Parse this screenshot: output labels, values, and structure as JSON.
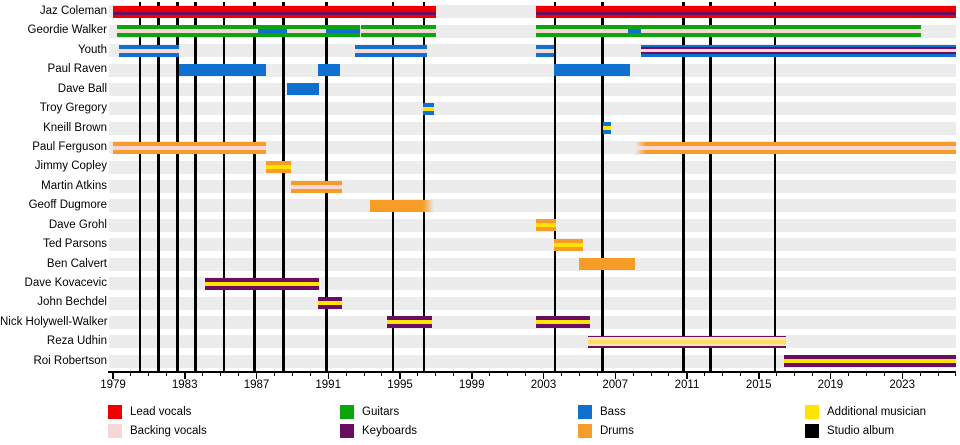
{
  "chart_data": {
    "type": "timeline",
    "description": "Band members timeline (Gantt-style) with studio album markers",
    "x_axis": {
      "start": 1979,
      "end": 2026,
      "major_tick_interval": 4,
      "minor_tick_interval": 1,
      "tick_labels": [
        "1979",
        "1983",
        "1987",
        "1991",
        "1995",
        "1999",
        "2003",
        "2007",
        "2011",
        "2015",
        "2019",
        "2023"
      ]
    },
    "role_colors": {
      "lead_vocals": "#ee0000",
      "backing_vocals": "#f6d7d7",
      "guitars": "#0ca50c",
      "keyboards": "#6b0e62",
      "bass": "#1070d0",
      "drums": "#f89c28",
      "additional_musician": "#ffe400",
      "additional_musician_pale": "#ffe9a8",
      "additional_musician_pale_core": "#ffdd66",
      "studio_album": "#000000"
    },
    "band_color": "#ececec",
    "album_years": [
      1980.5,
      1981.55,
      1982.6,
      1983.6,
      1985.2,
      1986.9,
      1988.5,
      1990.9,
      1994.6,
      1996.35,
      2003.65,
      2006.3,
      2010.8,
      2012.3,
      2015.9
    ],
    "members": [
      {
        "name": "Jaz Coleman",
        "segments": [
          {
            "from": 1979.0,
            "to": 1997.0,
            "roles": [
              "lead_vocals",
              "keyboards"
            ],
            "stripe_pos": "low"
          },
          {
            "from": 2002.6,
            "to": 2026.0,
            "roles": [
              "lead_vocals",
              "keyboards"
            ],
            "stripe_pos": "low"
          }
        ]
      },
      {
        "name": "Geordie Walker",
        "segments": [
          {
            "from": 1979.2,
            "to": 1987.1,
            "roles": [
              "guitars",
              "backing_vocals"
            ]
          },
          {
            "from": 1987.1,
            "to": 1988.7,
            "roles": [
              "guitars",
              "bass"
            ]
          },
          {
            "from": 1988.7,
            "to": 1990.9,
            "roles": [
              "guitars",
              "backing_vocals"
            ]
          },
          {
            "from": 1990.9,
            "to": 1992.8,
            "roles": [
              "guitars",
              "bass"
            ]
          },
          {
            "from": 1992.8,
            "to": 1997.0,
            "roles": [
              "guitars",
              "backing_vocals"
            ]
          },
          {
            "from": 2002.6,
            "to": 2007.7,
            "roles": [
              "guitars",
              "backing_vocals"
            ]
          },
          {
            "from": 2007.7,
            "to": 2008.45,
            "roles": [
              "guitars",
              "bass"
            ]
          },
          {
            "from": 2008.45,
            "to": 2024.05,
            "roles": [
              "guitars",
              "backing_vocals"
            ]
          }
        ]
      },
      {
        "name": "Youth",
        "segments": [
          {
            "from": 1979.35,
            "to": 1982.7,
            "roles": [
              "bass",
              "backing_vocals"
            ]
          },
          {
            "from": 1992.5,
            "to": 1996.5,
            "roles": [
              "bass",
              "backing_vocals"
            ]
          },
          {
            "from": 2002.6,
            "to": 2003.6,
            "roles": [
              "bass",
              "backing_vocals"
            ]
          },
          {
            "from": 2008.45,
            "to": 2026.0,
            "roles": [
              "bass",
              "keyboards",
              "backing_vocals"
            ]
          }
        ]
      },
      {
        "name": "Paul Raven",
        "segments": [
          {
            "from": 1982.7,
            "to": 1987.55,
            "roles": [
              "bass"
            ]
          },
          {
            "from": 1990.4,
            "to": 1991.65,
            "roles": [
              "bass"
            ]
          },
          {
            "from": 2003.6,
            "to": 2007.85,
            "roles": [
              "bass"
            ]
          }
        ]
      },
      {
        "name": "Dave Ball",
        "segments": [
          {
            "from": 1988.7,
            "to": 1990.5,
            "roles": [
              "bass"
            ]
          }
        ]
      },
      {
        "name": "Troy Gregory",
        "segments": [
          {
            "from": 1996.3,
            "to": 1996.9,
            "roles": [
              "bass",
              "additional_musician"
            ]
          }
        ]
      },
      {
        "name": "Kneill Brown",
        "segments": [
          {
            "from": 2006.3,
            "to": 2006.75,
            "roles": [
              "bass",
              "additional_musician"
            ]
          }
        ]
      },
      {
        "name": "Paul Ferguson",
        "segments": [
          {
            "from": 1979.0,
            "to": 1987.55,
            "roles": [
              "drums",
              "backing_vocals"
            ]
          },
          {
            "from": 2008.1,
            "to": 2026.0,
            "roles": [
              "drums",
              "backing_vocals"
            ],
            "fade_in": true
          }
        ]
      },
      {
        "name": "Jimmy Copley",
        "segments": [
          {
            "from": 1987.5,
            "to": 1988.9,
            "roles": [
              "drums",
              "additional_musician"
            ]
          }
        ]
      },
      {
        "name": "Martin Atkins",
        "segments": [
          {
            "from": 1988.9,
            "to": 1991.75,
            "roles": [
              "drums",
              "backing_vocals"
            ]
          }
        ]
      },
      {
        "name": "Geoff Dugmore",
        "segments": [
          {
            "from": 1993.3,
            "to": 1996.9,
            "roles": [
              "drums"
            ],
            "fade_out": true
          }
        ]
      },
      {
        "name": "Dave Grohl",
        "segments": [
          {
            "from": 2002.6,
            "to": 2003.7,
            "roles": [
              "drums",
              "additional_musician"
            ]
          }
        ]
      },
      {
        "name": "Ted Parsons",
        "segments": [
          {
            "from": 2003.6,
            "to": 2005.2,
            "roles": [
              "drums",
              "additional_musician"
            ]
          }
        ]
      },
      {
        "name": "Ben Calvert",
        "segments": [
          {
            "from": 2005.0,
            "to": 2008.1,
            "roles": [
              "drums"
            ]
          }
        ]
      },
      {
        "name": "Dave Kovacevic",
        "segments": [
          {
            "from": 1984.1,
            "to": 1990.5,
            "roles": [
              "keyboards",
              "additional_musician"
            ]
          }
        ]
      },
      {
        "name": "John Bechdel",
        "segments": [
          {
            "from": 1990.4,
            "to": 1991.75,
            "roles": [
              "keyboards",
              "additional_musician"
            ]
          }
        ]
      },
      {
        "name": "Nick Holywell-Walker",
        "segments": [
          {
            "from": 1994.3,
            "to": 1996.8,
            "roles": [
              "keyboards",
              "additional_musician"
            ]
          },
          {
            "from": 2002.6,
            "to": 2005.6,
            "roles": [
              "keyboards",
              "additional_musician"
            ]
          }
        ]
      },
      {
        "name": "Reza Udhin",
        "segments": [
          {
            "from": 2005.5,
            "to": 2016.5,
            "roles": [
              "keyboards",
              "additional_musician"
            ],
            "wide_stripe": true
          }
        ]
      },
      {
        "name": "Roi Robertson",
        "segments": [
          {
            "from": 2016.4,
            "to": 2026.0,
            "roles": [
              "keyboards",
              "additional_musician"
            ]
          }
        ]
      }
    ]
  },
  "legend": {
    "columns": [
      [
        {
          "role": "lead_vocals",
          "label": "Lead vocals"
        },
        {
          "role": "backing_vocals",
          "label": "Backing vocals"
        }
      ],
      [
        {
          "role": "guitars",
          "label": "Guitars"
        },
        {
          "role": "keyboards",
          "label": "Keyboards"
        }
      ],
      [
        {
          "role": "bass",
          "label": "Bass"
        },
        {
          "role": "drums",
          "label": "Drums"
        }
      ],
      [
        {
          "role": "additional_musician",
          "label": "Additional musician"
        },
        {
          "role": "studio_album",
          "label": "Studio album"
        }
      ]
    ]
  }
}
